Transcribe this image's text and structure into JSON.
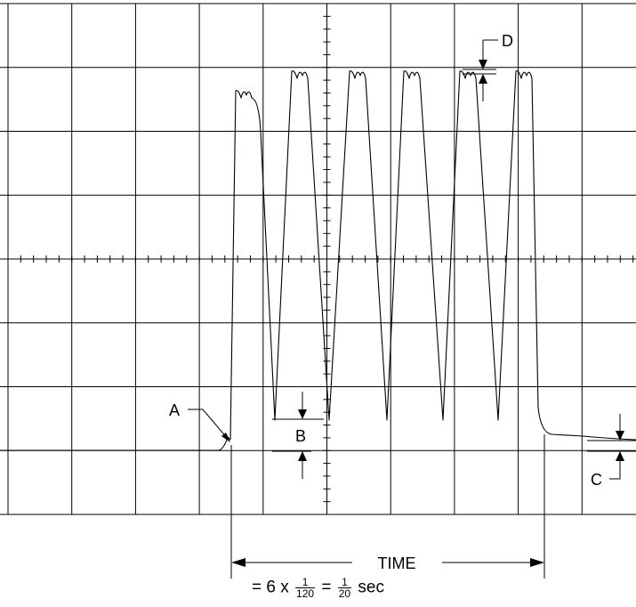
{
  "labels": {
    "a": "A",
    "b": "B",
    "c": "C",
    "d": "D",
    "time": "TIME"
  },
  "formula": {
    "lead": "= 6 x",
    "frac1_num": "1",
    "frac1_den": "120",
    "equals": "=",
    "frac2_num": "1",
    "frac2_den": "20",
    "unit": "sec"
  },
  "colors": {
    "ink": "#000000",
    "background": "#ffffff"
  }
}
